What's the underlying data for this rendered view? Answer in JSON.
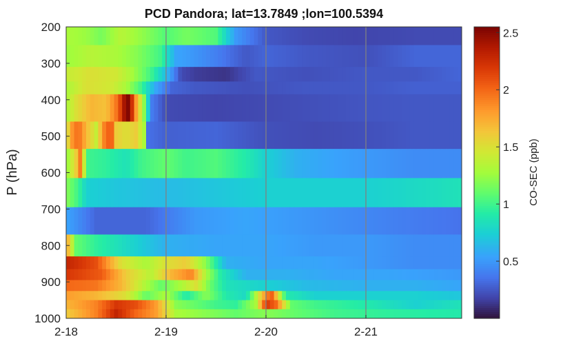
{
  "chart_data": {
    "type": "heatmap",
    "title": "PCD Pandora; lat=13.7849 ;lon=100.5394",
    "xlabel": "",
    "ylabel": "P (hPa)",
    "colorbar_label": "CO-SEC (ppb)",
    "x_range": [
      "2-18",
      "2-21 22:00"
    ],
    "x_ticks": [
      "2-18",
      "2-19",
      "2-20",
      "2-21"
    ],
    "y_range": [
      200,
      1000
    ],
    "y_reversed": true,
    "y_ticks": [
      200,
      300,
      400,
      500,
      600,
      700,
      800,
      900,
      1000
    ],
    "color_range": [
      0,
      2.55
    ],
    "colorbar_ticks": [
      0.5,
      1,
      1.5,
      2,
      2.5
    ],
    "colormap": "turbo",
    "grid": "vertical lines at x ticks",
    "pressure_bands": [
      {
        "p_top": 200,
        "p_bottom": 250,
        "values": [
          [
            0,
            1.3
          ],
          [
            0.2,
            1.25
          ],
          [
            0.35,
            1.15
          ],
          [
            0.55,
            1.35
          ],
          [
            0.8,
            1.2
          ],
          [
            1.0,
            1.05
          ],
          [
            1.2,
            1.15
          ],
          [
            1.5,
            1.05
          ],
          [
            1.7,
            0.5
          ],
          [
            2.0,
            0.25
          ],
          [
            2.4,
            0.2
          ],
          [
            2.9,
            0.18
          ],
          [
            3.5,
            0.2
          ],
          [
            3.95,
            0.2
          ]
        ]
      },
      {
        "p_top": 250,
        "p_bottom": 310,
        "values": [
          [
            0,
            1.25
          ],
          [
            0.25,
            1.35
          ],
          [
            0.5,
            1.3
          ],
          [
            0.7,
            1.2
          ],
          [
            0.95,
            1.0
          ],
          [
            1.1,
            0.55
          ],
          [
            1.25,
            0.5
          ],
          [
            1.5,
            0.4
          ],
          [
            1.8,
            0.25
          ],
          [
            2.0,
            0.3
          ],
          [
            2.4,
            0.25
          ],
          [
            3.0,
            0.22
          ],
          [
            3.5,
            0.3
          ],
          [
            3.95,
            0.3
          ]
        ]
      },
      {
        "p_top": 310,
        "p_bottom": 350,
        "values": [
          [
            0,
            1.4
          ],
          [
            0.25,
            1.5
          ],
          [
            0.5,
            1.45
          ],
          [
            0.65,
            1.3
          ],
          [
            0.85,
            1.0
          ],
          [
            1.0,
            0.65
          ],
          [
            1.15,
            0.2
          ],
          [
            1.3,
            0.15
          ],
          [
            1.6,
            0.12
          ],
          [
            1.9,
            0.25
          ],
          [
            2.4,
            0.22
          ],
          [
            3.0,
            0.25
          ],
          [
            3.5,
            0.25
          ],
          [
            3.95,
            0.3
          ]
        ]
      },
      {
        "p_top": 350,
        "p_bottom": 385,
        "values": [
          [
            0,
            1.3
          ],
          [
            0.2,
            1.5
          ],
          [
            0.45,
            1.45
          ],
          [
            0.6,
            1.3
          ],
          [
            0.75,
            1.0
          ],
          [
            0.9,
            0.55
          ],
          [
            1.05,
            0.3
          ],
          [
            1.3,
            0.25
          ],
          [
            1.8,
            0.22
          ],
          [
            2.4,
            0.25
          ],
          [
            3.0,
            0.25
          ],
          [
            3.5,
            0.28
          ],
          [
            3.95,
            0.28
          ]
        ]
      },
      {
        "p_top": 385,
        "p_bottom": 460,
        "values": [
          [
            0,
            1.3
          ],
          [
            0.1,
            1.5
          ],
          [
            0.25,
            1.7
          ],
          [
            0.4,
            1.65
          ],
          [
            0.52,
            2.0
          ],
          [
            0.58,
            2.4
          ],
          [
            0.63,
            2.55
          ],
          [
            0.7,
            1.8
          ],
          [
            0.78,
            1.2
          ],
          [
            0.85,
            0.4
          ],
          [
            1.0,
            0.2
          ],
          [
            1.5,
            0.18
          ],
          [
            2.0,
            0.2
          ],
          [
            2.5,
            0.22
          ],
          [
            3.0,
            0.24
          ],
          [
            3.5,
            0.25
          ],
          [
            3.95,
            0.25
          ]
        ]
      },
      {
        "p_top": 460,
        "p_bottom": 535,
        "values": [
          [
            0,
            1.4
          ],
          [
            0.05,
            1.8
          ],
          [
            0.12,
            2.0
          ],
          [
            0.2,
            1.7
          ],
          [
            0.3,
            1.4
          ],
          [
            0.38,
            1.9
          ],
          [
            0.45,
            2.1
          ],
          [
            0.5,
            1.6
          ],
          [
            0.6,
            1.5
          ],
          [
            0.7,
            1.6
          ],
          [
            0.78,
            1.3
          ],
          [
            0.8,
            0.35
          ],
          [
            1.0,
            0.28
          ],
          [
            1.5,
            0.3
          ],
          [
            2.0,
            0.22
          ],
          [
            2.5,
            0.2
          ],
          [
            3.0,
            0.22
          ],
          [
            3.5,
            0.25
          ],
          [
            3.95,
            0.25
          ]
        ]
      },
      {
        "p_top": 535,
        "p_bottom": 615,
        "values": [
          [
            0,
            1.2
          ],
          [
            0.1,
            1.6
          ],
          [
            0.15,
            2.0
          ],
          [
            0.2,
            1.0
          ],
          [
            0.4,
            0.95
          ],
          [
            0.6,
            0.85
          ],
          [
            0.75,
            1.0
          ],
          [
            1.0,
            1.1
          ],
          [
            1.2,
            1.0
          ],
          [
            1.5,
            1.05
          ],
          [
            1.8,
            0.9
          ],
          [
            2.0,
            0.75
          ],
          [
            2.3,
            0.6
          ],
          [
            2.6,
            0.55
          ],
          [
            3.0,
            0.5
          ],
          [
            3.5,
            0.45
          ],
          [
            3.95,
            0.45
          ]
        ]
      },
      {
        "p_top": 615,
        "p_bottom": 695,
        "values": [
          [
            0,
            1.2
          ],
          [
            0.12,
            1.0
          ],
          [
            0.2,
            0.75
          ],
          [
            0.5,
            0.7
          ],
          [
            1.0,
            0.65
          ],
          [
            1.5,
            0.7
          ],
          [
            2.0,
            0.75
          ],
          [
            2.5,
            0.75
          ],
          [
            3.0,
            0.75
          ],
          [
            3.5,
            0.8
          ],
          [
            3.95,
            0.85
          ]
        ]
      },
      {
        "p_top": 695,
        "p_bottom": 770,
        "values": [
          [
            0,
            0.55
          ],
          [
            0.3,
            0.3
          ],
          [
            0.8,
            0.3
          ],
          [
            1.3,
            0.5
          ],
          [
            1.8,
            0.55
          ],
          [
            2.3,
            0.5
          ],
          [
            2.8,
            0.45
          ],
          [
            3.3,
            0.4
          ],
          [
            3.95,
            0.35
          ]
        ]
      },
      {
        "p_top": 770,
        "p_bottom": 830,
        "values": [
          [
            0,
            1.8
          ],
          [
            0.1,
            1.1
          ],
          [
            0.3,
            0.95
          ],
          [
            0.6,
            0.8
          ],
          [
            1.0,
            0.6
          ],
          [
            1.5,
            0.55
          ],
          [
            2.0,
            0.55
          ],
          [
            2.5,
            0.5
          ],
          [
            3.0,
            0.5
          ],
          [
            3.5,
            0.45
          ],
          [
            3.95,
            0.45
          ]
        ]
      },
      {
        "p_top": 830,
        "p_bottom": 865,
        "values": [
          [
            0,
            2.3
          ],
          [
            0.3,
            2.1
          ],
          [
            0.55,
            1.5
          ],
          [
            0.8,
            1.3
          ],
          [
            1.0,
            1.5
          ],
          [
            1.2,
            1.6
          ],
          [
            1.4,
            1.2
          ],
          [
            1.6,
            0.6
          ],
          [
            2.0,
            0.55
          ],
          [
            2.5,
            0.55
          ],
          [
            3.0,
            0.5
          ],
          [
            3.5,
            0.45
          ],
          [
            3.95,
            0.45
          ]
        ]
      },
      {
        "p_top": 865,
        "p_bottom": 895,
        "values": [
          [
            0,
            2.2
          ],
          [
            0.35,
            2.05
          ],
          [
            0.6,
            1.6
          ],
          [
            0.85,
            1.35
          ],
          [
            1.05,
            1.7
          ],
          [
            1.25,
            1.9
          ],
          [
            1.4,
            1.3
          ],
          [
            1.55,
            0.9
          ],
          [
            1.8,
            0.6
          ],
          [
            2.2,
            0.6
          ],
          [
            2.7,
            0.55
          ],
          [
            3.2,
            0.55
          ],
          [
            3.95,
            0.5
          ]
        ]
      },
      {
        "p_top": 895,
        "p_bottom": 925,
        "values": [
          [
            0,
            2.0
          ],
          [
            0.3,
            1.95
          ],
          [
            0.55,
            1.7
          ],
          [
            0.8,
            1.3
          ],
          [
            0.95,
            1.1
          ],
          [
            1.15,
            1.3
          ],
          [
            1.3,
            1.5
          ],
          [
            1.45,
            1.1
          ],
          [
            1.6,
            0.85
          ],
          [
            2.0,
            0.75
          ],
          [
            2.4,
            0.65
          ],
          [
            3.0,
            0.6
          ],
          [
            3.5,
            0.6
          ],
          [
            3.95,
            0.55
          ]
        ]
      },
      {
        "p_top": 925,
        "p_bottom": 950,
        "values": [
          [
            0,
            1.8
          ],
          [
            0.3,
            1.7
          ],
          [
            0.6,
            1.5
          ],
          [
            0.8,
            1.1
          ],
          [
            1.0,
            1.3
          ],
          [
            1.2,
            0.9
          ],
          [
            1.4,
            1.2
          ],
          [
            1.6,
            0.9
          ],
          [
            1.8,
            0.8
          ],
          [
            1.95,
            1.6
          ],
          [
            2.05,
            2.1
          ],
          [
            2.2,
            0.9
          ],
          [
            2.5,
            0.75
          ],
          [
            3.0,
            0.75
          ],
          [
            3.5,
            0.75
          ],
          [
            3.95,
            0.7
          ]
        ]
      },
      {
        "p_top": 950,
        "p_bottom": 975,
        "values": [
          [
            0,
            1.7
          ],
          [
            0.3,
            1.9
          ],
          [
            0.5,
            2.2
          ],
          [
            0.7,
            2.1
          ],
          [
            0.9,
            1.8
          ],
          [
            1.1,
            1.2
          ],
          [
            1.3,
            1.1
          ],
          [
            1.5,
            1.0
          ],
          [
            1.7,
            0.95
          ],
          [
            1.9,
            1.3
          ],
          [
            2.0,
            2.2
          ],
          [
            2.1,
            2.0
          ],
          [
            2.25,
            1.1
          ],
          [
            2.5,
            1.0
          ],
          [
            3.0,
            0.9
          ],
          [
            3.5,
            0.75
          ],
          [
            3.95,
            0.85
          ]
        ]
      },
      {
        "p_top": 975,
        "p_bottom": 1000,
        "values": [
          [
            0,
            1.6
          ],
          [
            0.3,
            1.9
          ],
          [
            0.5,
            2.3
          ],
          [
            0.7,
            2.0
          ],
          [
            0.9,
            1.8
          ],
          [
            1.1,
            1.3
          ],
          [
            1.4,
            1.2
          ],
          [
            1.7,
            1.1
          ],
          [
            2.0,
            1.2
          ],
          [
            2.3,
            1.1
          ],
          [
            2.7,
            1.0
          ],
          [
            3.2,
            0.95
          ],
          [
            3.95,
            0.9
          ]
        ]
      }
    ]
  }
}
